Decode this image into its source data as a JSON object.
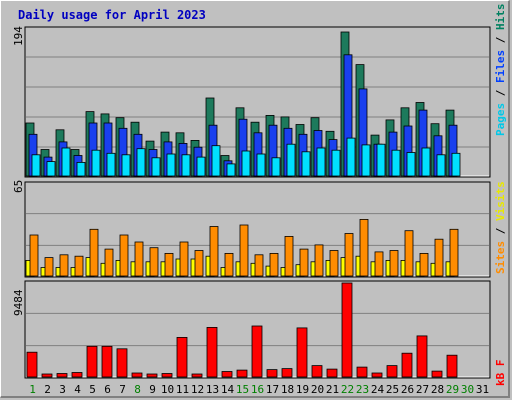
{
  "title": "Daily usage for April 2023",
  "colors": {
    "background": "#c0c0c0",
    "plot_bg": "#c0c0c0",
    "grid": "#808080",
    "title": "#0000c0",
    "hits": "#1d7a5c",
    "files": "#1940ee",
    "pages": "#00e0ff",
    "visits": "#ffff00",
    "sites": "#ff8c00",
    "kbytes": "#ff0000",
    "weekend_label": "#008000",
    "weekday_label": "#000000"
  },
  "right_labels": {
    "top": [
      {
        "text": "Pages",
        "color": "#00c8e8"
      },
      {
        "text": " / ",
        "color": "#000000"
      },
      {
        "text": "Files",
        "color": "#0040ff"
      },
      {
        "text": " / ",
        "color": "#000000"
      },
      {
        "text": "Hits",
        "color": "#008060"
      }
    ],
    "middle": [
      {
        "text": "Sites",
        "color": "#ff8c00"
      },
      {
        "text": " / ",
        "color": "#000000"
      },
      {
        "text": "Visits",
        "color": "#e8e800"
      }
    ],
    "bottom": [
      {
        "text": "kB F",
        "color": "#ff0000"
      }
    ]
  },
  "chart_data": [
    {
      "type": "bar",
      "panel": "hits-files-pages",
      "ymax_label": "194",
      "ylim": [
        0,
        194
      ],
      "categories": [
        "1",
        "2",
        "3",
        "4",
        "5",
        "6",
        "7",
        "8",
        "9",
        "10",
        "11",
        "12",
        "13",
        "14",
        "15",
        "16",
        "17",
        "18",
        "19",
        "20",
        "21",
        "22",
        "23",
        "24",
        "25",
        "26",
        "27",
        "28",
        "29",
        "30",
        "31"
      ],
      "series": [
        {
          "name": "Hits",
          "values": [
            70,
            35,
            61,
            35,
            85,
            82,
            77,
            71,
            46,
            58,
            57,
            47,
            103,
            27,
            90,
            71,
            80,
            78,
            68,
            77,
            59,
            190,
            147,
            54,
            74,
            90,
            97,
            69,
            87,
            0,
            0
          ]
        },
        {
          "name": "Files",
          "values": [
            55,
            25,
            45,
            27,
            70,
            70,
            63,
            55,
            35,
            45,
            43,
            38,
            67,
            20,
            75,
            57,
            67,
            63,
            55,
            60,
            48,
            160,
            115,
            42,
            58,
            66,
            87,
            53,
            67,
            0,
            0
          ]
        },
        {
          "name": "Pages",
          "values": [
            28,
            19,
            37,
            18,
            34,
            30,
            28,
            36,
            24,
            29,
            28,
            25,
            40,
            16,
            33,
            29,
            24,
            42,
            32,
            37,
            34,
            50,
            41,
            42,
            34,
            31,
            37,
            28,
            30,
            0,
            0
          ]
        }
      ]
    },
    {
      "type": "bar",
      "panel": "sites-visits",
      "ymax_label": "65",
      "ylim": [
        0,
        65
      ],
      "categories": [
        "1",
        "2",
        "3",
        "4",
        "5",
        "6",
        "7",
        "8",
        "9",
        "10",
        "11",
        "12",
        "13",
        "14",
        "15",
        "16",
        "17",
        "18",
        "19",
        "20",
        "21",
        "22",
        "23",
        "24",
        "25",
        "26",
        "27",
        "28",
        "29",
        "30",
        "31"
      ],
      "series": [
        {
          "name": "Visits",
          "values": [
            11,
            6,
            6,
            6,
            13,
            9,
            11,
            10,
            10,
            10,
            12,
            12,
            14,
            6,
            10,
            9,
            7,
            6,
            8,
            10,
            11,
            13,
            14,
            10,
            11,
            11,
            10,
            9,
            10,
            0,
            0
          ]
        },
        {
          "name": "Sites",
          "values": [
            29,
            13,
            15,
            14,
            33,
            19,
            29,
            24,
            20,
            16,
            24,
            18,
            35,
            16,
            36,
            15,
            16,
            28,
            19,
            22,
            18,
            30,
            40,
            17,
            18,
            32,
            16,
            26,
            33,
            0,
            0
          ]
        }
      ]
    },
    {
      "type": "bar",
      "panel": "kbytes",
      "ymax_label": "9484",
      "ylim": [
        0,
        9484
      ],
      "categories": [
        "1",
        "2",
        "3",
        "4",
        "5",
        "6",
        "7",
        "8",
        "9",
        "10",
        "11",
        "12",
        "13",
        "14",
        "15",
        "16",
        "17",
        "18",
        "19",
        "20",
        "21",
        "22",
        "23",
        "24",
        "25",
        "26",
        "27",
        "28",
        "29",
        "30",
        "31"
      ],
      "series": [
        {
          "name": "kB F",
          "values": [
            2500,
            300,
            350,
            450,
            3100,
            3100,
            2850,
            400,
            300,
            350,
            4000,
            300,
            5000,
            550,
            700,
            5150,
            750,
            850,
            4950,
            1150,
            800,
            9484,
            1000,
            400,
            1150,
            2400,
            4150,
            600,
            2200,
            0,
            0
          ]
        }
      ]
    }
  ],
  "weekend_days": [
    1,
    8,
    15,
    16,
    22,
    23,
    29,
    30
  ]
}
